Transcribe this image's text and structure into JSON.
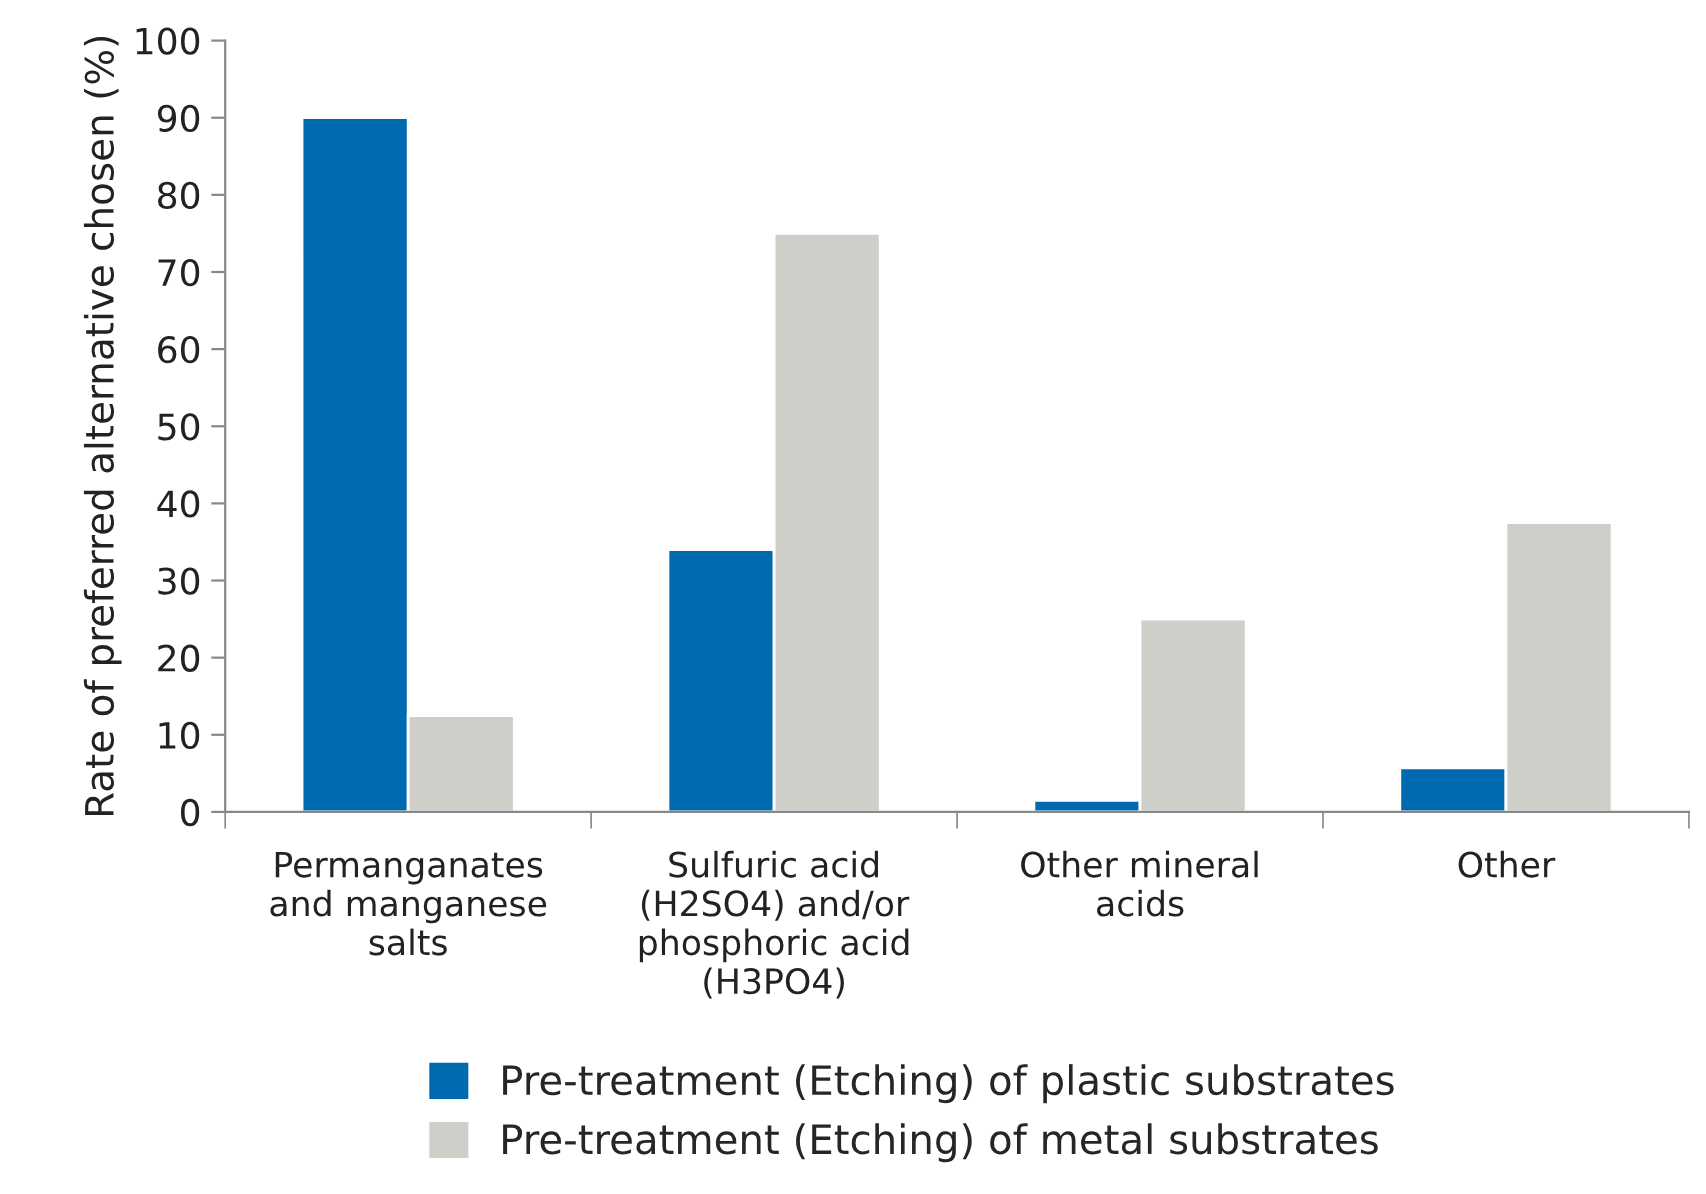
{
  "chart_data": {
    "type": "bar",
    "ylabel": "Rate of preferred alternative chosen (%)",
    "categories": [
      "Permanganates\nand manganese\nsalts",
      "Sulfuric acid\n(H2SO4) and/or\nphosphoric acid\n(H3PO4)",
      "Other mineral\nacids",
      "Other"
    ],
    "series": [
      {
        "name": "Pre-treatment (Etching) of plastic substrates",
        "color": "#006ab0",
        "values": [
          90,
          34,
          1.5,
          5.7
        ]
      },
      {
        "name": "Pre-treatment (Etching) of metal substrates",
        "color": "#cfcfca",
        "values": [
          12.5,
          75,
          25,
          37.5
        ]
      }
    ],
    "ylim": [
      0,
      100
    ],
    "yticks": [
      0,
      10,
      20,
      30,
      40,
      50,
      60,
      70,
      80,
      90,
      100
    ],
    "grid": false,
    "legend": "bottom"
  }
}
